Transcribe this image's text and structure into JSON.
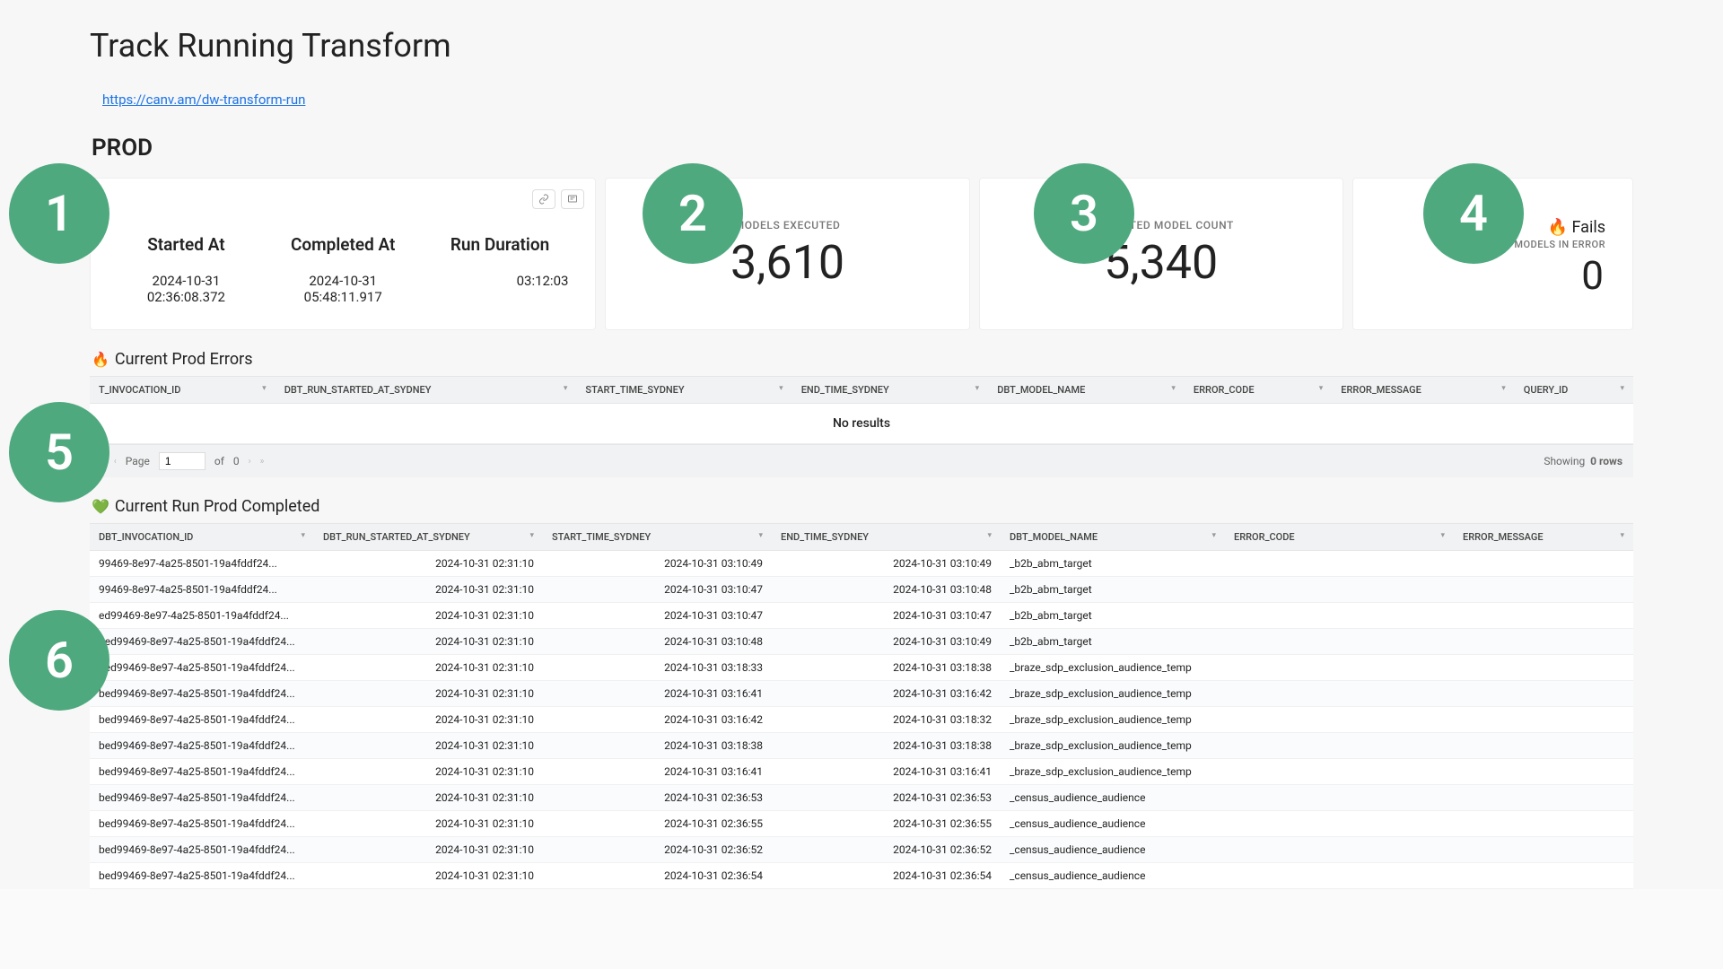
{
  "colors": {
    "badge_bg": "#4fa97e",
    "link": "#1a73e8"
  },
  "title": "Track Running Transform",
  "url": "https://canv.am/dw-transform-run",
  "env_label": "PROD",
  "badges": [
    "1",
    "2",
    "3",
    "4",
    "5",
    "6"
  ],
  "run_meta": {
    "started_head": "Started At",
    "started_val": "2024-10-31 02:36:08.372",
    "completed_head": "Completed At",
    "completed_val": "2024-10-31 05:48:11.917",
    "duration_head": "Run Duration",
    "duration_val": "03:12:03"
  },
  "metrics": {
    "executed_label": "MODELS EXECUTED",
    "executed_value": "3,610",
    "estimated_label": "ESTIMATED MODEL COUNT",
    "estimated_value": "5,340",
    "fails_title": "🔥 Fails",
    "fails_sub": "MODELS IN ERROR",
    "fails_value": "0"
  },
  "errors_panel": {
    "title_icon": "🔥",
    "title_text": "Current Prod Errors",
    "columns": [
      "T_INVOCATION_ID",
      "DBT_RUN_STARTED_AT_SYDNEY",
      "START_TIME_SYDNEY",
      "END_TIME_SYDNEY",
      "DBT_MODEL_NAME",
      "ERROR_CODE",
      "ERROR_MESSAGE",
      "QUERY_ID"
    ],
    "no_results": "No results",
    "pager": {
      "page_label": "Page",
      "page_value": "1",
      "of_label": "of",
      "total_pages": "0",
      "showing_label": "Showing",
      "rows_text": "0 rows"
    }
  },
  "completed_panel": {
    "title_icon": "💚",
    "title_text": "Current Run Prod Completed",
    "columns": [
      "DBT_INVOCATION_ID",
      "DBT_RUN_STARTED_AT_SYDNEY",
      "START_TIME_SYDNEY",
      "END_TIME_SYDNEY",
      "DBT_MODEL_NAME",
      "ERROR_CODE",
      "ERROR_MESSAGE"
    ],
    "rows": [
      [
        "99469-8e97-4a25-8501-19a4fddf24...",
        "2024-10-31 02:31:10",
        "2024-10-31 03:10:49",
        "2024-10-31 03:10:49",
        "_b2b_abm_target",
        "",
        ""
      ],
      [
        "99469-8e97-4a25-8501-19a4fddf24...",
        "2024-10-31 02:31:10",
        "2024-10-31 03:10:47",
        "2024-10-31 03:10:48",
        "_b2b_abm_target",
        "",
        ""
      ],
      [
        "ed99469-8e97-4a25-8501-19a4fddf24...",
        "2024-10-31 02:31:10",
        "2024-10-31 03:10:47",
        "2024-10-31 03:10:47",
        "_b2b_abm_target",
        "",
        ""
      ],
      [
        "bed99469-8e97-4a25-8501-19a4fddf24...",
        "2024-10-31 02:31:10",
        "2024-10-31 03:10:48",
        "2024-10-31 03:10:49",
        "_b2b_abm_target",
        "",
        ""
      ],
      [
        "bed99469-8e97-4a25-8501-19a4fddf24...",
        "2024-10-31 02:31:10",
        "2024-10-31 03:18:33",
        "2024-10-31 03:18:38",
        "_braze_sdp_exclusion_audience_temp",
        "",
        ""
      ],
      [
        "bed99469-8e97-4a25-8501-19a4fddf24...",
        "2024-10-31 02:31:10",
        "2024-10-31 03:16:41",
        "2024-10-31 03:16:42",
        "_braze_sdp_exclusion_audience_temp",
        "",
        ""
      ],
      [
        "bed99469-8e97-4a25-8501-19a4fddf24...",
        "2024-10-31 02:31:10",
        "2024-10-31 03:16:42",
        "2024-10-31 03:18:32",
        "_braze_sdp_exclusion_audience_temp",
        "",
        ""
      ],
      [
        "bed99469-8e97-4a25-8501-19a4fddf24...",
        "2024-10-31 02:31:10",
        "2024-10-31 03:18:38",
        "2024-10-31 03:18:38",
        "_braze_sdp_exclusion_audience_temp",
        "",
        ""
      ],
      [
        "bed99469-8e97-4a25-8501-19a4fddf24...",
        "2024-10-31 02:31:10",
        "2024-10-31 03:16:41",
        "2024-10-31 03:16:41",
        "_braze_sdp_exclusion_audience_temp",
        "",
        ""
      ],
      [
        "bed99469-8e97-4a25-8501-19a4fddf24...",
        "2024-10-31 02:31:10",
        "2024-10-31 02:36:53",
        "2024-10-31 02:36:53",
        "_census_audience_audience",
        "",
        ""
      ],
      [
        "bed99469-8e97-4a25-8501-19a4fddf24...",
        "2024-10-31 02:31:10",
        "2024-10-31 02:36:55",
        "2024-10-31 02:36:55",
        "_census_audience_audience",
        "",
        ""
      ],
      [
        "bed99469-8e97-4a25-8501-19a4fddf24...",
        "2024-10-31 02:31:10",
        "2024-10-31 02:36:52",
        "2024-10-31 02:36:52",
        "_census_audience_audience",
        "",
        ""
      ],
      [
        "bed99469-8e97-4a25-8501-19a4fddf24...",
        "2024-10-31 02:31:10",
        "2024-10-31 02:36:54",
        "2024-10-31 02:36:54",
        "_census_audience_audience",
        "",
        ""
      ]
    ]
  }
}
